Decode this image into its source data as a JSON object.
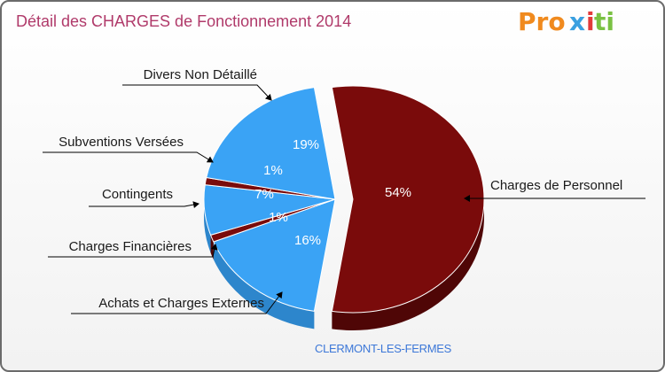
{
  "title": "Détail des CHARGES de Fonctionnement 2014",
  "subtitle": "CLERMONT-LES-FERMES",
  "logo": {
    "text": "Proxiti",
    "colors": [
      "#f08a1e",
      "#3aa0e0",
      "#e23a3a",
      "#7ac143"
    ]
  },
  "colors": {
    "blue": "#3aa3f5",
    "blue_dark": "#2d86cc",
    "red": "#7a0b0b",
    "red_dark": "#4f0606"
  },
  "chart_data": {
    "type": "pie",
    "title": "Détail des CHARGES de Fonctionnement 2014",
    "slices": [
      {
        "label": "Charges de Personnel",
        "value": 54,
        "pct_label": "54%",
        "color": "#7a0b0b"
      },
      {
        "label": "Achats et Charges Externes",
        "value": 16,
        "pct_label": "16%",
        "color": "#3aa3f5"
      },
      {
        "label": "Charges Financières",
        "value": 1,
        "pct_label": "1%",
        "color": "#7a0b0b"
      },
      {
        "label": "Contingents",
        "value": 7,
        "pct_label": "7%",
        "color": "#3aa3f5"
      },
      {
        "label": "Subventions Versées",
        "value": 1,
        "pct_label": "1%",
        "color": "#7a0b0b"
      },
      {
        "label": "Divers Non Détaillé",
        "value": 19,
        "pct_label": "19%",
        "color": "#3aa3f5"
      }
    ]
  }
}
